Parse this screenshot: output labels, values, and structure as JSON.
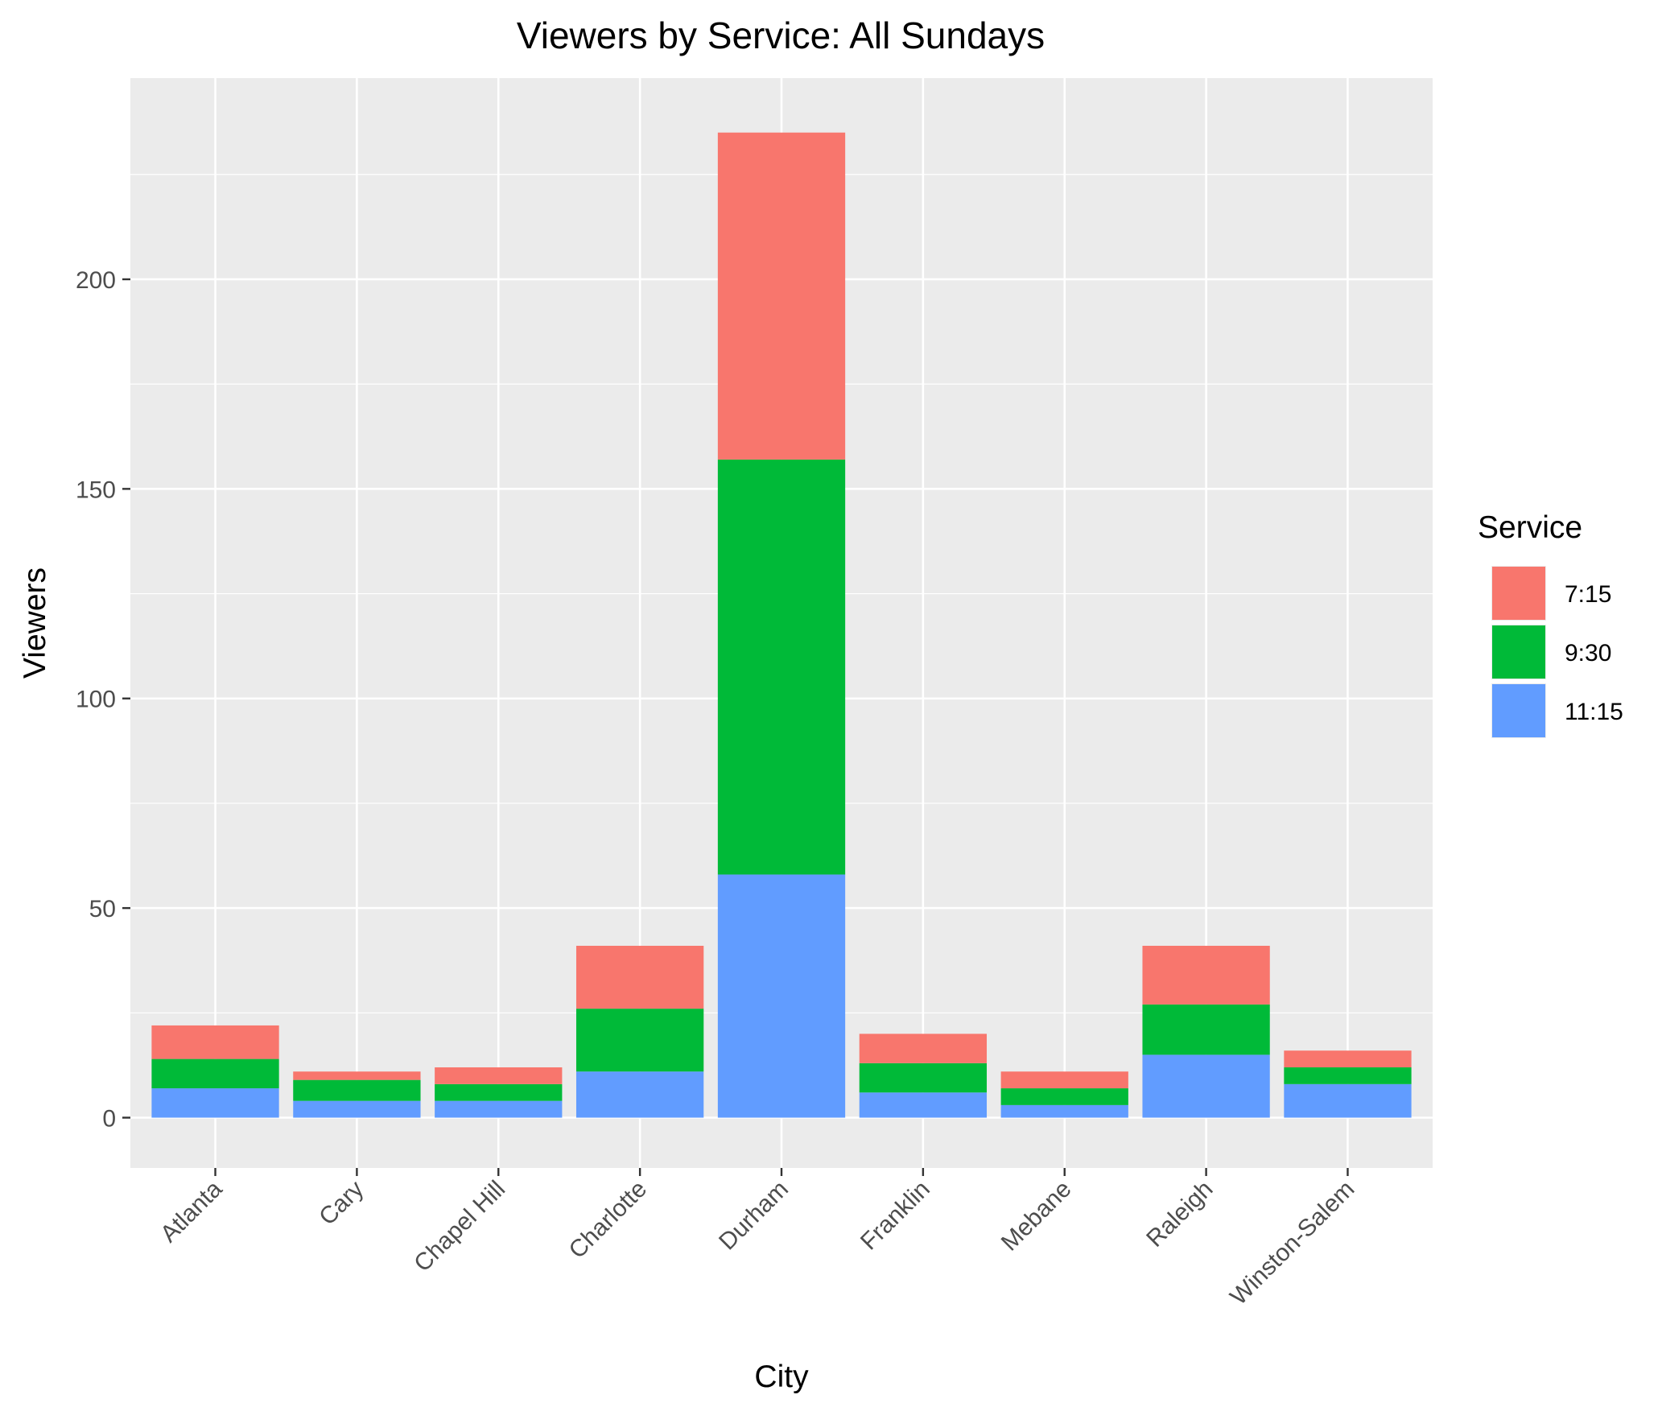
{
  "chart_data": {
    "type": "bar",
    "stacked": true,
    "title": "Viewers by Service: All Sundays",
    "xlabel": "City",
    "ylabel": "Viewers",
    "categories": [
      "Atlanta",
      "Cary",
      "Chapel Hill",
      "Charlotte",
      "Durham",
      "Franklin",
      "Mebane",
      "Raleigh",
      "Winston-Salem"
    ],
    "ylim": [
      -12,
      248
    ],
    "yticks": [
      0,
      50,
      100,
      150,
      200
    ],
    "grid": true,
    "legend": {
      "title": "Service",
      "position": "right"
    },
    "series": [
      {
        "name": "11:15",
        "color": "#619CFF",
        "values": [
          7,
          4,
          4,
          11,
          58,
          6,
          3,
          15,
          8
        ]
      },
      {
        "name": "9:30",
        "color": "#00BA38",
        "values": [
          7,
          5,
          4,
          15,
          99,
          7,
          4,
          12,
          4
        ]
      },
      {
        "name": "7:15",
        "color": "#F8766D",
        "values": [
          8,
          2,
          4,
          15,
          78,
          7,
          4,
          14,
          4
        ]
      }
    ],
    "legend_order": [
      "7:15",
      "9:30",
      "11:15"
    ],
    "colors": {
      "panel": "#EBEBEB",
      "grid": "#FFFFFF"
    }
  }
}
